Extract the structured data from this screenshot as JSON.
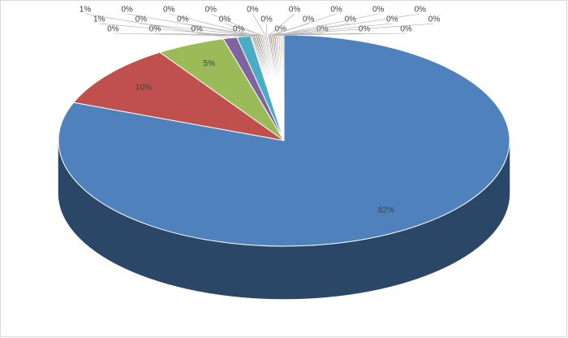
{
  "chart_data": {
    "type": "pie",
    "start_angle": 0,
    "direction": "clockwise",
    "depth": 65,
    "values": [
      82,
      10,
      5,
      1,
      1,
      0.1,
      0.1,
      0.1,
      0.1,
      0.1,
      0.1,
      0.1,
      0.1,
      0.1,
      0.1,
      0.1,
      0.1,
      0.1,
      0.1,
      0.1,
      0.1,
      0.1,
      0.1,
      0.1,
      0.1,
      0.1,
      0.1,
      0.1,
      0.1
    ],
    "value_labels": [
      "82%",
      "10%",
      "5%",
      "1%",
      "1%",
      "0%",
      "0%",
      "0%",
      "0%",
      "0%",
      "0%",
      "0%",
      "0%",
      "0%",
      "0%",
      "0%",
      "0%",
      "0%",
      "0%",
      "0%",
      "0%",
      "0%",
      "0%",
      "0%",
      "0%",
      "0%",
      "0%",
      "0%",
      "0%"
    ],
    "colors": [
      "#4f81bd",
      "#c0504d",
      "#9bbb59",
      "#8064a2",
      "#4bacc6",
      "#f79646",
      "#2c4d75",
      "#772c2a",
      "#5f7530",
      "#4d3b62",
      "#276a7c",
      "#b65708",
      "#729aca",
      "#cd7371",
      "#afc97a",
      "#9983b5",
      "#6fbdd1",
      "#f9ab6b",
      "#3a679c",
      "#9f3b38",
      "#7f9c40",
      "#664f83",
      "#358ea6",
      "#f37e0f",
      "#95b3d7",
      "#d99694",
      "#c3d69b",
      "#b2a2c7",
      "#93cddd"
    ]
  }
}
